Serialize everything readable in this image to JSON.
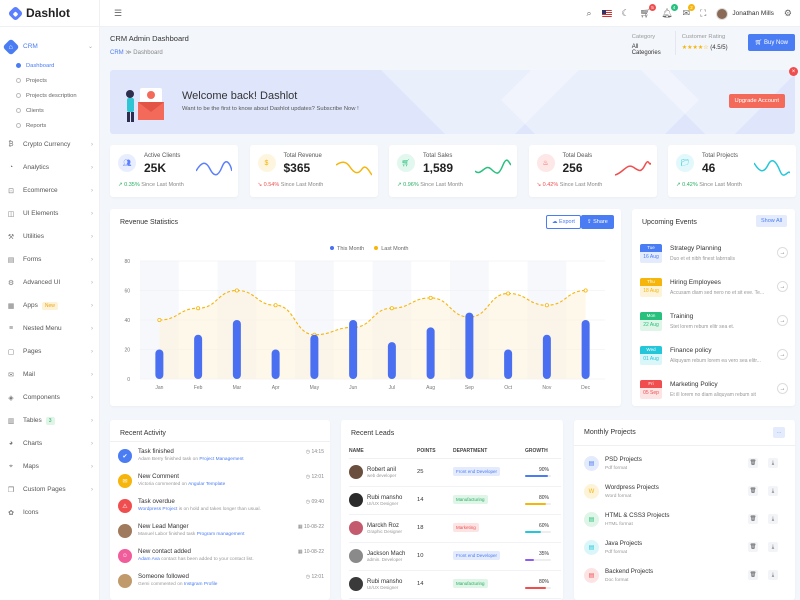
{
  "app": {
    "name": "Dashlot"
  },
  "sidebar": {
    "crm": {
      "label": "CRM",
      "sub": [
        "Dashboard",
        "Projects",
        "Projects description",
        "Clients",
        "Reports"
      ]
    },
    "items": [
      {
        "label": "Crypto Currency",
        "icon": "currency-icon"
      },
      {
        "label": "Analytics",
        "icon": "analytics-icon"
      },
      {
        "label": "Ecommerce",
        "icon": "cart-icon"
      },
      {
        "label": "UI Elements",
        "icon": "layers-icon"
      },
      {
        "label": "Utilities",
        "icon": "tools-icon"
      },
      {
        "label": "Forms",
        "icon": "forms-icon"
      },
      {
        "label": "Advanced UI",
        "icon": "advanced-icon"
      },
      {
        "label": "Apps",
        "icon": "apps-icon",
        "badge": "New"
      },
      {
        "label": "Nested Menu",
        "icon": "nested-icon"
      },
      {
        "label": "Pages",
        "icon": "pages-icon"
      },
      {
        "label": "Mail",
        "icon": "mail-icon"
      },
      {
        "label": "Components",
        "icon": "components-icon"
      },
      {
        "label": "Tables",
        "icon": "table-icon",
        "badge": "3"
      },
      {
        "label": "Charts",
        "icon": "chart-icon"
      },
      {
        "label": "Maps",
        "icon": "map-icon"
      },
      {
        "label": "Custom Pages",
        "icon": "custom-pages-icon"
      },
      {
        "label": "Icons",
        "icon": "icons-icon"
      }
    ]
  },
  "topbar": {
    "cart_count": "5",
    "notif_count": "4",
    "msg_count": "2",
    "user_name": "Jonathan Mills"
  },
  "header": {
    "title": "CRM Admin Dashboard",
    "breadcrumb": [
      "CRM",
      "Dashboard"
    ],
    "category_label": "Category",
    "category_value": "All Categories",
    "rating_label": "Customer Rating",
    "rating_value": "(4.5/5)",
    "buy_label": "Buy Now"
  },
  "welcome": {
    "title": "Welcome back! Dashlot",
    "subtitle": "Want to be the first to know about Dashlot updates? Subscribe Now !",
    "button": "Upgrade Account"
  },
  "stats": [
    {
      "label": "Active Clients",
      "value": "25K",
      "change": "0.35%",
      "since": "Since Last Month",
      "dir": "up",
      "color": "#5b7fff"
    },
    {
      "label": "Total Revenue",
      "value": "$365",
      "change": "0.54%",
      "since": "Since Last Month",
      "dir": "down",
      "color": "#f5b50a"
    },
    {
      "label": "Total Sales",
      "value": "1,589",
      "change": "0.96%",
      "since": "Since Last Month",
      "dir": "up",
      "color": "#27c07d"
    },
    {
      "label": "Total Deals",
      "value": "256",
      "change": "0.42%",
      "since": "Since Last Month",
      "dir": "down",
      "color": "#f04e4e"
    },
    {
      "label": "Total Projects",
      "value": "46",
      "change": "0.42%",
      "since": "Since Last Month",
      "dir": "up",
      "color": "#23c7d9"
    }
  ],
  "revenue": {
    "title": "Revenue Statistics",
    "export_label": "Export",
    "share_label": "Share"
  },
  "chart_data": {
    "type": "bar",
    "categories": [
      "Jan",
      "Feb",
      "Mar",
      "Apr",
      "May",
      "Jun",
      "Jul",
      "Aug",
      "Sep",
      "Oct",
      "Nov",
      "Dec"
    ],
    "series": [
      {
        "name": "This Month",
        "type": "bar",
        "values": [
          20,
          30,
          40,
          20,
          30,
          40,
          25,
          35,
          45,
          20,
          30,
          40
        ],
        "color": "#4a6ff0"
      },
      {
        "name": "Last Month",
        "type": "line",
        "values": [
          40,
          48,
          60,
          50,
          30,
          35,
          48,
          55,
          42,
          58,
          50,
          60
        ],
        "color": "#f5b50a"
      }
    ],
    "ylim": [
      0,
      80
    ],
    "yticks": [
      0,
      20,
      40,
      60,
      80
    ],
    "legend": "top"
  },
  "events": {
    "title": "Upcoming Events",
    "show_all": "Show All",
    "items": [
      {
        "day": "Tue",
        "date": "16 Aug",
        "title": "Strategy Planning",
        "sub": "Duo et et nibh finest labrrralis",
        "color": "#4a7cf4",
        "bg": "#e4ebfd"
      },
      {
        "day": "Thu",
        "date": "18 Aug",
        "title": "Hiring Employees",
        "sub": "Accusam diam sed nero no et sit eve. Te...",
        "color": "#f5b50a",
        "bg": "#fdf3d8"
      },
      {
        "day": "Mon",
        "date": "22 Aug",
        "title": "Training",
        "sub": "Stet lorem rebum elitr sea et.",
        "color": "#27c07d",
        "bg": "#def5e7"
      },
      {
        "day": "Wed",
        "date": "01 Aug",
        "title": "Finance policy",
        "sub": "Aliquyam rebum lorem ea vero sea elitr...",
        "color": "#23c7d9",
        "bg": "#dbf6f9"
      },
      {
        "day": "Fri",
        "date": "05 Sep",
        "title": "Marketing Policy",
        "sub": "Et ill lorem no diam aliquyam rebum sit",
        "color": "#f04e4e",
        "bg": "#fde4e4"
      }
    ]
  },
  "activity": {
    "title": "Recent Activity",
    "items": [
      {
        "title": "Task finished",
        "pre": "Adam Berry finished task on",
        "link": "Project Management",
        "time": "14:15",
        "color": "#4a7cf4",
        "icon": "✔"
      },
      {
        "title": "New Comment",
        "pre": "Victoria commented on",
        "link": "Angular Template",
        "time": "12:01",
        "color": "#f5b50a",
        "icon": "✉"
      },
      {
        "title": "Task overdue",
        "pre": "",
        "link": "Wordpress Project",
        "post": "is on hold and takes longer than usual.",
        "time": "09:40",
        "color": "#f04e4e",
        "icon": "⚠"
      },
      {
        "title": "New Lead Manger",
        "pre": "Manuel Labor finished task",
        "link": "Program management",
        "time": "10-08-22",
        "color": "#a07a5c",
        "icon": ""
      },
      {
        "title": "New contact added",
        "pre": "",
        "link": "Adam Ava",
        "post": "contact has been added to your contact list.",
        "time": "10-08-22",
        "color": "#f15c9a",
        "icon": "☺"
      },
      {
        "title": "Someone followed",
        "pre": "Gemi commented on",
        "link": "Instgram Profile",
        "time": "12:01",
        "color": "#c09a6b",
        "icon": ""
      }
    ]
  },
  "leads": {
    "title": "Recent Leads",
    "columns": [
      "NAME",
      "POINTS",
      "DEPARTMENT",
      "GROWTH"
    ],
    "rows": [
      {
        "name": "Robert anil",
        "role": "web developer",
        "points": "25",
        "dept": "Front end Developer",
        "growth": "90%",
        "pct": 0.9,
        "dept_color": "#4a7cf4",
        "dept_bg": "#e4ebfd",
        "bar": "#4a7cf4",
        "av": "#6b4f3e"
      },
      {
        "name": "Rubi mansho",
        "role": "UI/UX Designer",
        "points": "14",
        "dept": "Manufacturing",
        "growth": "80%",
        "pct": 0.8,
        "dept_color": "#27ae60",
        "dept_bg": "#def5e7",
        "bar": "#f5b50a",
        "av": "#2b2b2b"
      },
      {
        "name": "Marckh Roz",
        "role": "Graphic Designer",
        "points": "18",
        "dept": "Marketing",
        "growth": "60%",
        "pct": 0.6,
        "dept_color": "#f04e4e",
        "dept_bg": "#fde4e4",
        "bar": "#23c7d9",
        "av": "#c45a6e"
      },
      {
        "name": "Jackson Mach",
        "role": "admin. Developer",
        "points": "10",
        "dept": "Front end Developer",
        "growth": "35%",
        "pct": 0.35,
        "dept_color": "#4a7cf4",
        "dept_bg": "#e4ebfd",
        "bar": "#8e5cf0",
        "av": "#8a8a8a"
      },
      {
        "name": "Rubi mansho",
        "role": "UI/UX Designer",
        "points": "14",
        "dept": "Manufacturing",
        "growth": "80%",
        "pct": 0.8,
        "dept_color": "#27ae60",
        "dept_bg": "#def5e7",
        "bar": "#f04e4e",
        "av": "#3a3a3a"
      }
    ]
  },
  "projects": {
    "title": "Monthly Projects",
    "items": [
      {
        "title": "PSD Projects",
        "sub": "Pdf format",
        "color": "#4a7cf4",
        "bg": "#e4ebfd"
      },
      {
        "title": "Wordpress Projects",
        "sub": "Word format",
        "color": "#f5b50a",
        "bg": "#fdf3d8"
      },
      {
        "title": "HTML & CSS3 Projects",
        "sub": "HTML format",
        "color": "#27c07d",
        "bg": "#def5e7"
      },
      {
        "title": "Java Projects",
        "sub": "Pdf format",
        "color": "#23c7d9",
        "bg": "#dbf6f9"
      },
      {
        "title": "Backend Projects",
        "sub": "Doc format",
        "color": "#f04e4e",
        "bg": "#fde4e4"
      }
    ]
  }
}
